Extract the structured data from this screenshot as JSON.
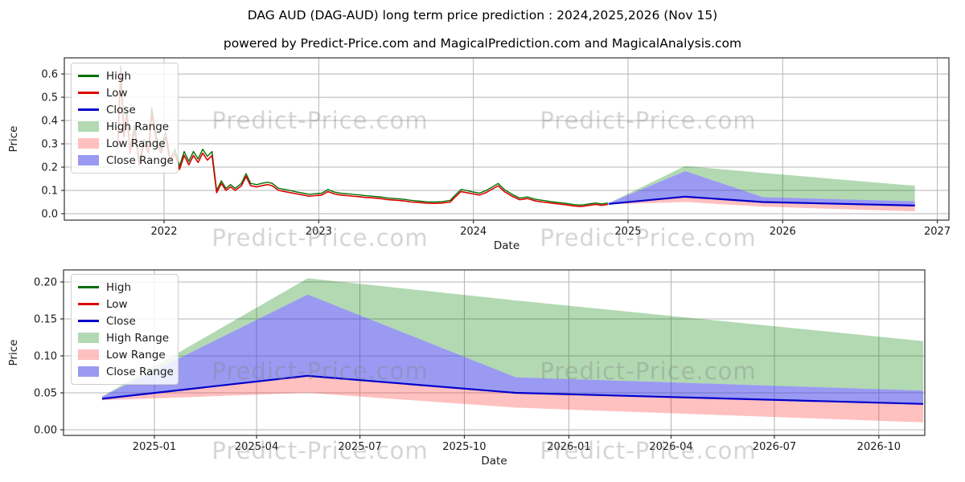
{
  "title": "DAG AUD (DAG-AUD) long term price prediction : 2024,2025,2026 (Nov 15)",
  "subtitle": "powered by Predict-Price.com and MagicalPrediction.com and MagicalAnalysis.com",
  "watermark": {
    "text": "Predict-Price.com"
  },
  "colors": {
    "high": "#007000",
    "low": "#dd0000",
    "close": "#0000cc",
    "high_range": "rgba(0,128,0,0.30)",
    "low_range": "rgba(255,45,45,0.30)",
    "close_range": "rgba(62,62,230,0.52)",
    "grid": "#b4b4b4",
    "spine": "#333333",
    "text": "#1a1a1a"
  },
  "legend": {
    "items": [
      {
        "label": "High",
        "type": "line",
        "color": "#007000"
      },
      {
        "label": "Low",
        "type": "line",
        "color": "#dd0000"
      },
      {
        "label": "Close",
        "type": "line",
        "color": "#0000cc"
      },
      {
        "label": "High Range",
        "type": "patch",
        "color": "rgba(0,128,0,0.30)"
      },
      {
        "label": "Low Range",
        "type": "patch",
        "color": "rgba(255,45,45,0.30)"
      },
      {
        "label": "Close Range",
        "type": "patch",
        "color": "rgba(62,62,230,0.52)"
      }
    ]
  },
  "chart_data": [
    {
      "type": "line",
      "name": "long-term-history-and-forecast",
      "xlabel": "Date",
      "ylabel": "Price",
      "grid": true,
      "legend_position": "upper-left",
      "xlim": [
        2021.355,
        2027.075
      ],
      "ylim": [
        -0.0276,
        0.6693
      ],
      "xticks": [
        {
          "v": 2022,
          "label": "2022"
        },
        {
          "v": 2023,
          "label": "2023"
        },
        {
          "v": 2024,
          "label": "2024"
        },
        {
          "v": 2025,
          "label": "2025"
        },
        {
          "v": 2026,
          "label": "2026"
        },
        {
          "v": 2027,
          "label": "2027"
        }
      ],
      "yticks": [
        {
          "v": 0.0,
          "label": "0.0"
        },
        {
          "v": 0.1,
          "label": "0.1"
        },
        {
          "v": 0.2,
          "label": "0.2"
        },
        {
          "v": 0.3,
          "label": "0.3"
        },
        {
          "v": 0.4,
          "label": "0.4"
        },
        {
          "v": 0.5,
          "label": "0.5"
        },
        {
          "v": 0.6,
          "label": "0.6"
        }
      ],
      "history": {
        "x": [
          2021.7,
          2021.72,
          2021.74,
          2021.76,
          2021.78,
          2021.81,
          2021.84,
          2021.87,
          2021.9,
          2021.92,
          2021.95,
          2021.98,
          2022.01,
          2022.04,
          2022.07,
          2022.1,
          2022.13,
          2022.16,
          2022.19,
          2022.22,
          2022.25,
          2022.28,
          2022.31,
          2022.34,
          2022.37,
          2022.4,
          2022.43,
          2022.46,
          2022.5,
          2022.53,
          2022.56,
          2022.6,
          2022.63,
          2022.67,
          2022.7,
          2022.74,
          2022.78,
          2022.82,
          2022.86,
          2022.9,
          2022.94,
          2022.98,
          2023.02,
          2023.06,
          2023.1,
          2023.14,
          2023.18,
          2023.22,
          2023.26,
          2023.3,
          2023.35,
          2023.4,
          2023.45,
          2023.5,
          2023.55,
          2023.6,
          2023.65,
          2023.7,
          2023.75,
          2023.8,
          2023.85,
          2023.88,
          2023.92,
          2023.96,
          2024.0,
          2024.04,
          2024.08,
          2024.12,
          2024.16,
          2024.2,
          2024.25,
          2024.3,
          2024.35,
          2024.4,
          2024.45,
          2024.5,
          2024.55,
          2024.6,
          2024.65,
          2024.7,
          2024.75,
          2024.79,
          2024.83,
          2024.87
        ],
        "high": [
          0.298,
          0.634,
          0.351,
          0.445,
          0.277,
          0.382,
          0.225,
          0.319,
          0.277,
          0.456,
          0.33,
          0.277,
          0.351,
          0.235,
          0.277,
          0.204,
          0.267,
          0.225,
          0.267,
          0.235,
          0.277,
          0.246,
          0.267,
          0.099,
          0.141,
          0.109,
          0.125,
          0.109,
          0.13,
          0.172,
          0.13,
          0.125,
          0.13,
          0.135,
          0.13,
          0.109,
          0.104,
          0.099,
          0.093,
          0.088,
          0.083,
          0.086,
          0.088,
          0.104,
          0.093,
          0.088,
          0.086,
          0.083,
          0.081,
          0.078,
          0.075,
          0.072,
          0.067,
          0.065,
          0.062,
          0.057,
          0.054,
          0.051,
          0.05,
          0.052,
          0.057,
          0.078,
          0.104,
          0.099,
          0.093,
          0.088,
          0.099,
          0.114,
          0.13,
          0.104,
          0.083,
          0.067,
          0.072,
          0.062,
          0.057,
          0.052,
          0.048,
          0.044,
          0.039,
          0.037,
          0.042,
          0.046,
          0.042,
          0.046
        ],
        "low": [
          0.28,
          0.6,
          0.33,
          0.42,
          0.26,
          0.36,
          0.21,
          0.3,
          0.26,
          0.43,
          0.31,
          0.26,
          0.33,
          0.22,
          0.26,
          0.19,
          0.25,
          0.21,
          0.25,
          0.22,
          0.26,
          0.23,
          0.25,
          0.09,
          0.13,
          0.1,
          0.115,
          0.1,
          0.12,
          0.16,
          0.12,
          0.115,
          0.12,
          0.125,
          0.12,
          0.1,
          0.095,
          0.09,
          0.085,
          0.08,
          0.075,
          0.078,
          0.08,
          0.095,
          0.085,
          0.08,
          0.078,
          0.075,
          0.073,
          0.07,
          0.068,
          0.065,
          0.06,
          0.058,
          0.055,
          0.05,
          0.048,
          0.045,
          0.044,
          0.046,
          0.05,
          0.07,
          0.095,
          0.09,
          0.085,
          0.08,
          0.09,
          0.105,
          0.12,
          0.095,
          0.075,
          0.06,
          0.065,
          0.055,
          0.05,
          0.046,
          0.042,
          0.038,
          0.033,
          0.031,
          0.036,
          0.04,
          0.036,
          0.04
        ]
      },
      "forecast": {
        "dates": [
          "2024-11-15",
          "2025-05-15",
          "2025-11-15",
          "2026-11-15"
        ],
        "x": [
          2024.874,
          2025.37,
          2025.872,
          2026.855
        ],
        "high_range_top": [
          0.045,
          0.205,
          0.175,
          0.12
        ],
        "close_range_top": [
          0.045,
          0.183,
          0.071,
          0.053
        ],
        "close": [
          0.042,
          0.073,
          0.05,
          0.035
        ],
        "low_range_bottom": [
          0.04,
          0.05,
          0.03,
          0.01
        ]
      }
    },
    {
      "type": "area",
      "name": "forecast-detail",
      "xlabel": "Date",
      "ylabel": "Price",
      "grid": true,
      "legend_position": "upper-left",
      "xlim": [
        2024.7808,
        2026.8588
      ],
      "ylim": [
        -0.0076,
        0.2163
      ],
      "xticks": [
        {
          "v": 2025.0,
          "label": "2025-01"
        },
        {
          "v": 2025.2466,
          "label": "2025-04"
        },
        {
          "v": 2025.4959,
          "label": "2025-07"
        },
        {
          "v": 2025.7479,
          "label": "2025-10"
        },
        {
          "v": 2026.0,
          "label": "2026-01"
        },
        {
          "v": 2026.2466,
          "label": "2026-04"
        },
        {
          "v": 2026.4959,
          "label": "2026-07"
        },
        {
          "v": 2026.7479,
          "label": "2026-10"
        }
      ],
      "yticks": [
        {
          "v": 0.0,
          "label": "0.00"
        },
        {
          "v": 0.05,
          "label": "0.05"
        },
        {
          "v": 0.1,
          "label": "0.10"
        },
        {
          "v": 0.15,
          "label": "0.15"
        },
        {
          "v": 0.2,
          "label": "0.20"
        }
      ],
      "forecast": {
        "dates": [
          "2024-11-15",
          "2025-05-15",
          "2025-11-15",
          "2026-11-15"
        ],
        "x": [
          2024.874,
          2025.37,
          2025.872,
          2026.855
        ],
        "high_range_top": [
          0.045,
          0.205,
          0.175,
          0.12
        ],
        "close_range_top": [
          0.045,
          0.183,
          0.071,
          0.053
        ],
        "close": [
          0.042,
          0.073,
          0.05,
          0.035
        ],
        "low_range_bottom": [
          0.04,
          0.05,
          0.03,
          0.01
        ]
      }
    }
  ]
}
